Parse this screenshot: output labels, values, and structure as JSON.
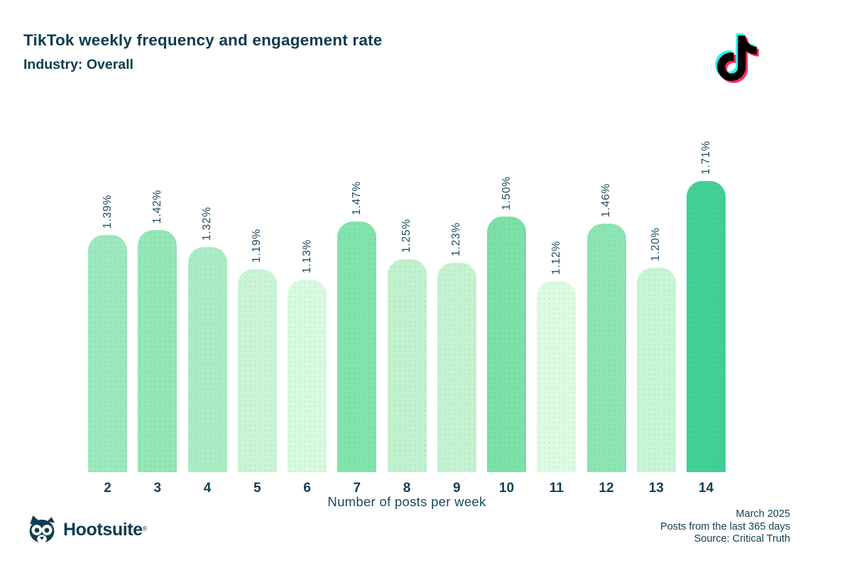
{
  "header": {
    "title": "TikTok weekly frequency and engagement rate",
    "subtitle": "Industry: Overall"
  },
  "chart_data": {
    "type": "bar",
    "title": "TikTok weekly frequency and engagement rate",
    "subtitle": "Industry: Overall",
    "xlabel": "Number of posts per week",
    "ylabel": "",
    "categories": [
      "2",
      "3",
      "4",
      "5",
      "6",
      "7",
      "8",
      "9",
      "10",
      "11",
      "12",
      "13",
      "14"
    ],
    "values": [
      1.39,
      1.42,
      1.32,
      1.19,
      1.13,
      1.47,
      1.25,
      1.23,
      1.5,
      1.12,
      1.46,
      1.2,
      1.71
    ],
    "value_labels": [
      "1.39%",
      "1.42%",
      "1.32%",
      "1.19%",
      "1.13%",
      "1.47%",
      "1.25%",
      "1.23%",
      "1.50%",
      "1.12%",
      "1.46%",
      "1.20%",
      "1.71%"
    ],
    "bar_colors": [
      "#9ce9bd",
      "#93e6b6",
      "#aaedc4",
      "#c9f5d6",
      "#d8fadf",
      "#83e3ad",
      "#c0f2cf",
      "#c4f3d2",
      "#7ce0a9",
      "#dcfbe3",
      "#8de5b3",
      "#c7f5d6",
      "#43d094"
    ],
    "ylim": [
      0,
      1.97
    ],
    "grid": false,
    "legend": "none",
    "value_label_rotation": -90
  },
  "branding": {
    "tiktok_icon": "tiktok-note-logo",
    "tiktok_cyan": "#25f4ee",
    "tiktok_red": "#fe2c55",
    "tiktok_black": "#010101",
    "hootsuite_wordmark": "Hootsuite",
    "hootsuite_registered": "®"
  },
  "footer": {
    "lines": [
      "March 2025",
      "Posts from the last 365 days",
      "Source: Critical Truth"
    ]
  },
  "colors": {
    "heading_text": "#0d3c4e",
    "axis_text": "#123f52",
    "value_label_text": "#1d4b60",
    "max_bar_accent": "#43d094"
  }
}
